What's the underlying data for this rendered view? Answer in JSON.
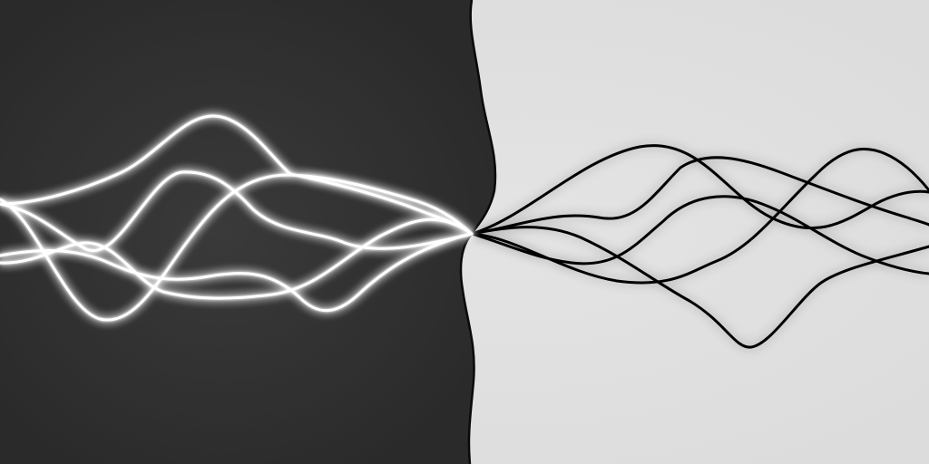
{
  "image": {
    "subject": "abstract-wave-lines",
    "palette": {
      "dark_background": "#2a2a2a",
      "dark_background_center": "#3a3a3a",
      "light_background": "#dcdcdc",
      "light_background_center": "#e4e4e4",
      "glow_line": "#ffffff",
      "ink_line": "#000000",
      "divider": "#0a0a0a"
    },
    "left_half": {
      "style": "glowing-white-lines-on-dark",
      "line_count": 4
    },
    "right_half": {
      "style": "black-lines-on-light",
      "line_count": 4
    }
  }
}
